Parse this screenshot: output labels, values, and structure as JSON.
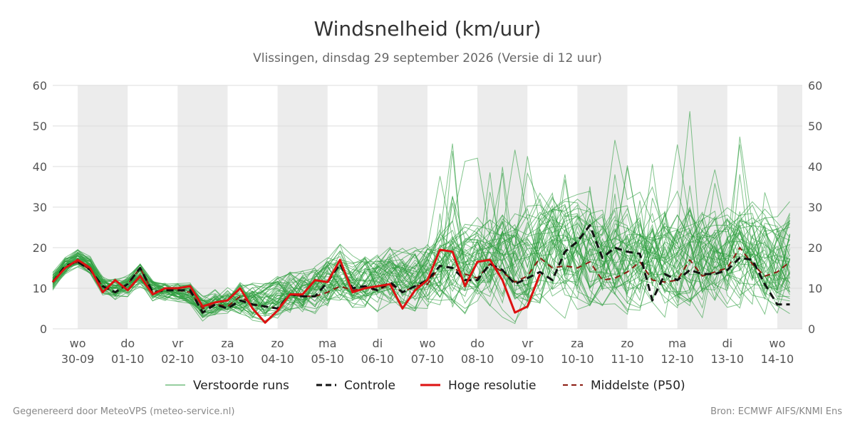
{
  "title": "Windsnelheid (km/uur)",
  "subtitle": "Vlissingen, dinsdag 29 september 2026 (Versie di 12 uur)",
  "footer_left": "Gegenereerd door MeteoVPS (meteo-service.nl)",
  "footer_right": "Bron: ECMWF AIFS/KNMI Ens",
  "colors": {
    "perturbed": "#2e9e3f",
    "control": "#111111",
    "high_res": "#dd1111",
    "median": "#8b1a10",
    "weekend_band": "#ececec",
    "grid": "#dddddd"
  },
  "chart_data": {
    "type": "line",
    "title": "Windsnelheid (km/uur)",
    "ylim": [
      0,
      60
    ],
    "y_ticks": [
      0,
      10,
      20,
      30,
      40,
      50,
      60
    ],
    "grid": true,
    "legend_position": "bottom",
    "x_start": "29-09 12:00",
    "x_end": "14-10 12:00",
    "x_ticks": [
      {
        "day": "wo",
        "date": "30-09"
      },
      {
        "day": "do",
        "date": "01-10"
      },
      {
        "day": "vr",
        "date": "02-10"
      },
      {
        "day": "za",
        "date": "03-10"
      },
      {
        "day": "zo",
        "date": "04-10"
      },
      {
        "day": "ma",
        "date": "05-10"
      },
      {
        "day": "di",
        "date": "06-10"
      },
      {
        "day": "wo",
        "date": "07-10"
      },
      {
        "day": "do",
        "date": "08-10"
      },
      {
        "day": "vr",
        "date": "09-10"
      },
      {
        "day": "za",
        "date": "10-10"
      },
      {
        "day": "zo",
        "date": "11-10"
      },
      {
        "day": "ma",
        "date": "12-10"
      },
      {
        "day": "di",
        "date": "13-10"
      },
      {
        "day": "wo",
        "date": "14-10"
      }
    ],
    "legend": [
      {
        "key": "perturbed",
        "label": "Verstoorde runs"
      },
      {
        "key": "control",
        "label": "Controle"
      },
      {
        "key": "high_res",
        "label": "Hoge resolutie"
      },
      {
        "key": "median",
        "label": "Middelste (P50)"
      }
    ],
    "series": [
      {
        "name": "Hoge resolutie",
        "step_hours": 6,
        "values": [
          11.5,
          15.0,
          17.0,
          15.0,
          9.0,
          12.0,
          9.5,
          13.0,
          8.5,
          10.0,
          10.0,
          10.5,
          5.5,
          6.5,
          7.0,
          10.0,
          5.0,
          1.5,
          4.5,
          8.5,
          8.5,
          12.0,
          11.5,
          17.0,
          9.0,
          10.0,
          10.5,
          11.0,
          5.0,
          9.5,
          12.0,
          19.5,
          19.0,
          10.5,
          16.5,
          17.0,
          12.0,
          4.0,
          5.5,
          13.5
        ]
      },
      {
        "name": "Controle",
        "step_hours": 6,
        "values": [
          11.5,
          15.5,
          16.5,
          14.5,
          10.5,
          9.0,
          11.0,
          15.0,
          9.0,
          9.5,
          9.5,
          9.5,
          4.0,
          6.0,
          5.0,
          7.0,
          6.0,
          5.5,
          5.0,
          8.5,
          8.0,
          8.0,
          11.5,
          16.0,
          10.0,
          10.5,
          9.5,
          11.5,
          9.0,
          10.5,
          12.0,
          15.5,
          15.0,
          12.0,
          12.0,
          16.0,
          14.5,
          11.0,
          12.5,
          14.0,
          12.0,
          19.0,
          21.5,
          25.5,
          17.5,
          20.0,
          19.0,
          18.5,
          7.0,
          13.5,
          12.0,
          14.5,
          13.5,
          13.5,
          14.5,
          17.5,
          17.0,
          11.0,
          6.0,
          6.0
        ]
      },
      {
        "name": "Middelste (P50)",
        "step_hours": 6,
        "values": [
          11.5,
          15.0,
          16.5,
          14.5,
          10.5,
          9.0,
          11.0,
          15.0,
          9.0,
          9.5,
          9.5,
          9.0,
          5.0,
          6.0,
          5.5,
          8.0,
          6.0,
          5.5,
          5.0,
          8.5,
          8.0,
          8.0,
          9.0,
          10.5,
          9.5,
          10.0,
          9.5,
          11.0,
          9.0,
          10.5,
          11.0,
          15.5,
          15.0,
          13.5,
          12.5,
          16.0,
          14.0,
          11.5,
          13.0,
          17.5,
          15.0,
          15.5,
          15.0,
          16.5,
          12.0,
          12.5,
          14.0,
          16.5,
          12.0,
          11.5,
          12.0,
          17.0,
          13.0,
          14.0,
          15.0,
          20.0,
          16.0,
          13.0,
          14.0,
          16.5
        ]
      }
    ],
    "ensemble": {
      "name": "Verstoorde runs",
      "members": 50,
      "step_hours": 6,
      "spread_note": "Verstoorde runs",
      "envelope_p10": [
        9,
        12,
        14,
        12,
        7,
        5,
        6,
        8,
        5,
        5,
        5,
        4,
        2,
        3,
        3,
        3,
        2,
        1,
        2,
        3,
        3,
        3,
        4,
        5,
        4,
        4,
        4,
        4,
        3,
        4,
        4,
        5,
        5,
        4,
        5,
        5,
        4,
        3,
        3,
        4,
        4,
        4,
        4,
        4,
        4,
        4,
        4,
        4,
        3,
        3,
        3,
        4,
        3,
        3,
        4,
        4,
        4,
        3,
        3,
        4
      ],
      "envelope_p90": [
        15,
        19,
        21,
        19,
        15,
        15,
        15,
        18,
        14,
        13,
        13,
        13,
        9,
        10,
        11,
        13,
        12,
        12,
        13,
        16,
        16,
        17,
        19,
        22,
        18,
        19,
        19,
        21,
        20,
        21,
        23,
        26,
        27,
        27,
        28,
        30,
        30,
        30,
        31,
        34,
        34,
        33,
        32,
        32,
        30,
        31,
        31,
        32,
        31,
        31,
        31,
        32,
        31,
        30,
        30,
        31,
        31,
        30,
        30,
        31
      ]
    }
  }
}
